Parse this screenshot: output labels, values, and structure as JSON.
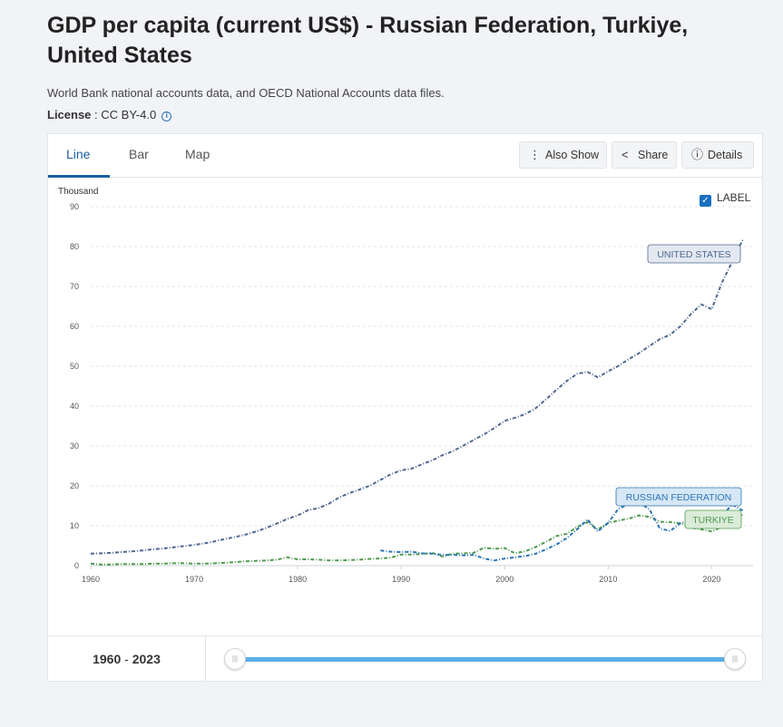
{
  "title": "GDP per capita (current US$) - Russian Federation, Turkiye, United States",
  "source": "World Bank national accounts data, and OECD National Accounts data files.",
  "license": {
    "label": "License",
    "separator": " : ",
    "value": "CC BY-4.0",
    "icon": "info-icon"
  },
  "tabs": [
    {
      "label": "Line",
      "active": true
    },
    {
      "label": "Bar",
      "active": false
    },
    {
      "label": "Map",
      "active": false
    }
  ],
  "toolbar": {
    "also_show": "Also Show",
    "share": "Share",
    "details": "Details"
  },
  "label_toggle": {
    "label": "LABEL",
    "checked": true
  },
  "range": {
    "start": "1960",
    "sep": " - ",
    "end": "2023"
  },
  "colors": {
    "us": "#4f6890",
    "ru": "#2d74b4",
    "tr": "#4e9a4f",
    "accent": "#1a5f9e"
  },
  "chart_data": {
    "type": "line",
    "unit_label": "Thousand",
    "ylim": [
      0,
      90
    ],
    "yticks": [
      0,
      10,
      20,
      30,
      40,
      50,
      60,
      70,
      80,
      90
    ],
    "xlim": [
      1960,
      2024
    ],
    "xticks": [
      1960,
      1970,
      1980,
      1990,
      2000,
      2010,
      2020
    ],
    "grid": true,
    "series": [
      {
        "name": "UNITED STATES",
        "x": [
          1960,
          1961,
          1962,
          1963,
          1964,
          1965,
          1966,
          1967,
          1968,
          1969,
          1970,
          1971,
          1972,
          1973,
          1974,
          1975,
          1976,
          1977,
          1978,
          1979,
          1980,
          1981,
          1982,
          1983,
          1984,
          1985,
          1986,
          1987,
          1988,
          1989,
          1990,
          1991,
          1992,
          1993,
          1994,
          1995,
          1996,
          1997,
          1998,
          1999,
          2000,
          2001,
          2002,
          2003,
          2004,
          2005,
          2006,
          2007,
          2008,
          2009,
          2010,
          2011,
          2012,
          2013,
          2014,
          2015,
          2016,
          2017,
          2018,
          2019,
          2020,
          2021,
          2022,
          2023
        ],
        "y": [
          3.0,
          3.1,
          3.2,
          3.4,
          3.6,
          3.8,
          4.1,
          4.3,
          4.6,
          4.9,
          5.2,
          5.6,
          6.1,
          6.7,
          7.2,
          7.8,
          8.6,
          9.5,
          10.6,
          11.7,
          12.6,
          13.9,
          14.4,
          15.5,
          17.1,
          18.2,
          19.1,
          20.1,
          21.5,
          22.9,
          23.9,
          24.3,
          25.4,
          26.4,
          27.7,
          28.7,
          30.1,
          31.5,
          32.9,
          34.5,
          36.3,
          37.1,
          38.0,
          39.5,
          41.7,
          44.1,
          46.3,
          48.1,
          48.6,
          47.2,
          48.7,
          50.1,
          51.8,
          53.3,
          55.1,
          56.8,
          57.9,
          60.1,
          63.1,
          65.5,
          64.3,
          71.0,
          76.3,
          81.7
        ]
      },
      {
        "name": "RUSSIAN FEDERATION",
        "x": [
          1988,
          1989,
          1990,
          1991,
          1992,
          1993,
          1994,
          1995,
          1996,
          1997,
          1998,
          1999,
          2000,
          2001,
          2002,
          2003,
          2004,
          2005,
          2006,
          2007,
          2008,
          2009,
          2010,
          2011,
          2012,
          2013,
          2014,
          2015,
          2016,
          2017,
          2018,
          2019,
          2020,
          2021,
          2022,
          2023
        ],
        "y": [
          3.8,
          3.5,
          3.4,
          3.5,
          3.1,
          3.0,
          2.7,
          2.7,
          2.6,
          2.7,
          1.8,
          1.3,
          1.8,
          2.1,
          2.4,
          3.0,
          4.1,
          5.3,
          6.9,
          9.1,
          11.6,
          8.6,
          10.7,
          14.3,
          15.4,
          15.9,
          14.1,
          9.3,
          8.7,
          10.7,
          11.3,
          11.5,
          10.2,
          12.6,
          15.3,
          13.8
        ]
      },
      {
        "name": "TURKIYE",
        "x": [
          1960,
          1961,
          1962,
          1963,
          1964,
          1965,
          1966,
          1967,
          1968,
          1969,
          1970,
          1971,
          1972,
          1973,
          1974,
          1975,
          1976,
          1977,
          1978,
          1979,
          1980,
          1981,
          1982,
          1983,
          1984,
          1985,
          1986,
          1987,
          1988,
          1989,
          1990,
          1991,
          1992,
          1993,
          1994,
          1995,
          1996,
          1997,
          1998,
          1999,
          2000,
          2001,
          2002,
          2003,
          2004,
          2005,
          2006,
          2007,
          2008,
          2009,
          2010,
          2011,
          2012,
          2013,
          2014,
          2015,
          2016,
          2017,
          2018,
          2019,
          2020,
          2021,
          2022,
          2023
        ],
        "y": [
          0.5,
          0.3,
          0.3,
          0.4,
          0.4,
          0.4,
          0.5,
          0.5,
          0.6,
          0.6,
          0.5,
          0.5,
          0.6,
          0.7,
          0.9,
          1.1,
          1.2,
          1.3,
          1.5,
          2.1,
          1.6,
          1.6,
          1.5,
          1.3,
          1.3,
          1.4,
          1.5,
          1.7,
          1.8,
          2.0,
          2.8,
          2.8,
          2.9,
          3.2,
          2.3,
          3.0,
          3.1,
          3.2,
          4.5,
          4.2,
          4.4,
          3.1,
          3.6,
          4.7,
          6.0,
          7.4,
          8.0,
          9.7,
          10.9,
          9.1,
          10.7,
          11.3,
          11.8,
          12.6,
          12.2,
          11.0,
          10.9,
          10.6,
          9.5,
          9.1,
          8.6,
          9.7,
          10.6,
          12.9
        ]
      }
    ],
    "labels": [
      {
        "series": "UNITED STATES",
        "text": "UNITED STATES"
      },
      {
        "series": "RUSSIAN FEDERATION",
        "text": "RUSSIAN FEDERATION"
      },
      {
        "series": "TURKIYE",
        "text": "TURKIYE"
      }
    ]
  }
}
